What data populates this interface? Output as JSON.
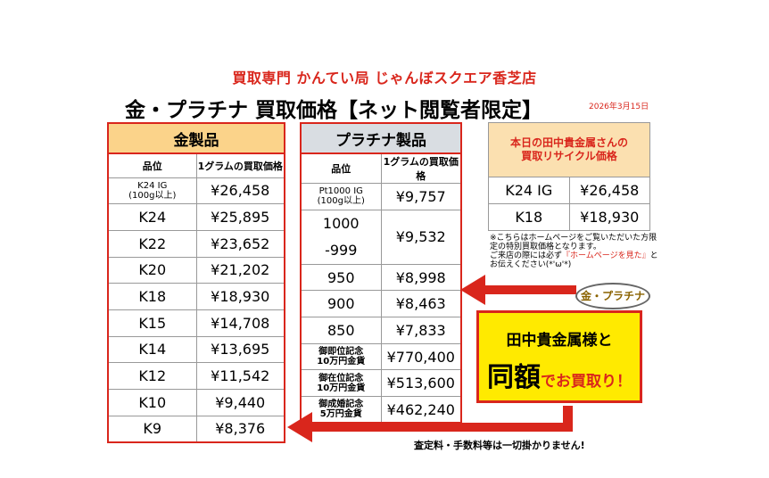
{
  "header": {
    "store_name": "買取専門 かんてい局 じゃんぼスクエア香芝店",
    "title": "金・プラチナ 買取価格【ネット閲覧者限定】",
    "date": "2026年3月15日"
  },
  "gold_table": {
    "title": "金製品",
    "col_grade": "品位",
    "col_price": "1グラムの買取価格",
    "first_grade_line1": "K24 IG",
    "first_grade_line2": "(100g以上)",
    "first_price": "¥26,458",
    "rows": [
      {
        "grade": "K24",
        "price": "¥25,895"
      },
      {
        "grade": "K22",
        "price": "¥23,652"
      },
      {
        "grade": "K20",
        "price": "¥21,202"
      },
      {
        "grade": "K18",
        "price": "¥18,930"
      },
      {
        "grade": "K15",
        "price": "¥14,708"
      },
      {
        "grade": "K14",
        "price": "¥13,695"
      },
      {
        "grade": "K12",
        "price": "¥11,542"
      },
      {
        "grade": "K10",
        "price": "¥9,440"
      },
      {
        "grade": "K9",
        "price": "¥8,376"
      }
    ]
  },
  "platinum_table": {
    "title": "プラチナ製品",
    "col_grade": "品位",
    "col_price": "1グラムの買取価格",
    "first_grade_line1": "Pt1000 IG",
    "first_grade_line2": "(100g以上)",
    "first_price": "¥9,757",
    "pt1000_line1": "1000",
    "pt1000_line2": "-999",
    "pt1000_price": "¥9,532",
    "rows": [
      {
        "grade": "950",
        "price": "¥8,998"
      },
      {
        "grade": "900",
        "price": "¥8,463"
      },
      {
        "grade": "850",
        "price": "¥7,833"
      }
    ],
    "coins": [
      {
        "line1": "御即位記念",
        "line2": "10万円金貨",
        "price": "¥770,400"
      },
      {
        "line1": "御在位記念",
        "line2": "10万円金貨",
        "price": "¥513,600"
      },
      {
        "line1": "御成婚記念",
        "line2": "5万円金貨",
        "price": "¥462,240"
      }
    ]
  },
  "tanaka_table": {
    "title_line1": "本日の田中貴金属さんの",
    "title_line2": "買取リサイクル価格",
    "rows": [
      {
        "grade": "K24 IG",
        "price": "¥26,458"
      },
      {
        "grade": "K18",
        "price": "¥18,930"
      }
    ]
  },
  "note": {
    "text1": "※こちらはホームページをご覧いただいた方限定の特別買取価格となります。",
    "text2_a": "ご来店の際には必ず",
    "text2_red": "『ホームページを見た』",
    "text2_b": "とお伝えください(*'ω'*)"
  },
  "callout": {
    "bubble": "金・プラチナ",
    "line1": "田中貴金属様と",
    "big": "同額",
    "rest": "でお買取り！"
  },
  "footer": "査定料・手数料等は一切掛かりません!",
  "colors": {
    "accent_red": "#d9261c",
    "gold_header": "#fbd38a",
    "platinum_header": "#d9dde2",
    "callout_yellow": "#ffea00"
  }
}
